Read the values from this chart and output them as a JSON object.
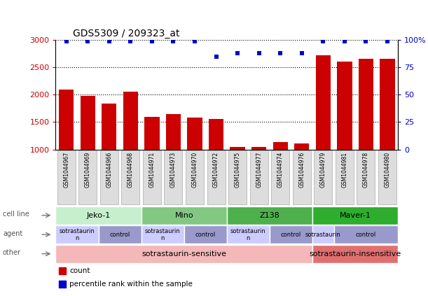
{
  "title": "GDS5309 / 209323_at",
  "samples": [
    "GSM1044967",
    "GSM1044969",
    "GSM1044966",
    "GSM1044968",
    "GSM1044971",
    "GSM1044973",
    "GSM1044970",
    "GSM1044972",
    "GSM1044975",
    "GSM1044977",
    "GSM1044974",
    "GSM1044976",
    "GSM1044979",
    "GSM1044981",
    "GSM1044978",
    "GSM1044980"
  ],
  "counts": [
    2100,
    1980,
    1840,
    2060,
    1590,
    1650,
    1580,
    1560,
    1040,
    1050,
    1140,
    1115,
    2720,
    2610,
    2660,
    2660
  ],
  "percentiles": [
    99,
    99,
    99,
    99,
    99,
    99,
    99,
    85,
    88,
    88,
    88,
    88,
    99,
    99,
    99,
    99
  ],
  "ylim_left": [
    1000,
    3000
  ],
  "ylim_right": [
    0,
    100
  ],
  "yticks_left": [
    1000,
    1500,
    2000,
    2500,
    3000
  ],
  "yticks_right": [
    0,
    25,
    50,
    75,
    100
  ],
  "bar_color": "#cc0000",
  "dot_color": "#0000cc",
  "cell_lines": [
    {
      "label": "Jeko-1",
      "start": 0,
      "end": 4,
      "color": "#c6efce"
    },
    {
      "label": "Mino",
      "start": 4,
      "end": 8,
      "color": "#82c882"
    },
    {
      "label": "Z138",
      "start": 8,
      "end": 12,
      "color": "#4db04d"
    },
    {
      "label": "Maver-1",
      "start": 12,
      "end": 16,
      "color": "#2ead2e"
    }
  ],
  "agent_groups": [
    {
      "label": "sotrastaurin\nn",
      "start": 0,
      "end": 2,
      "color": "#ccccff"
    },
    {
      "label": "control",
      "start": 2,
      "end": 4,
      "color": "#9999cc"
    },
    {
      "label": "sotrastaurin\nn",
      "start": 4,
      "end": 6,
      "color": "#ccccff"
    },
    {
      "label": "control",
      "start": 6,
      "end": 8,
      "color": "#9999cc"
    },
    {
      "label": "sotrastaurin\nn",
      "start": 8,
      "end": 10,
      "color": "#ccccff"
    },
    {
      "label": "control",
      "start": 10,
      "end": 12,
      "color": "#9999cc"
    },
    {
      "label": "sotrastaurin",
      "start": 12,
      "end": 13,
      "color": "#ccccff"
    },
    {
      "label": "control",
      "start": 13,
      "end": 16,
      "color": "#9999cc"
    }
  ],
  "other_groups": [
    {
      "label": "sotrastaurin-sensitive",
      "start": 0,
      "end": 12,
      "color": "#f4b8b8"
    },
    {
      "label": "sotrastaurin-insensitive",
      "start": 12,
      "end": 16,
      "color": "#e07070"
    }
  ],
  "row_labels": [
    "cell line",
    "agent",
    "other"
  ],
  "legend_items": [
    {
      "color": "#cc0000",
      "label": "count"
    },
    {
      "color": "#0000cc",
      "label": "percentile rank within the sample"
    }
  ],
  "bg_color": "#ffffff"
}
